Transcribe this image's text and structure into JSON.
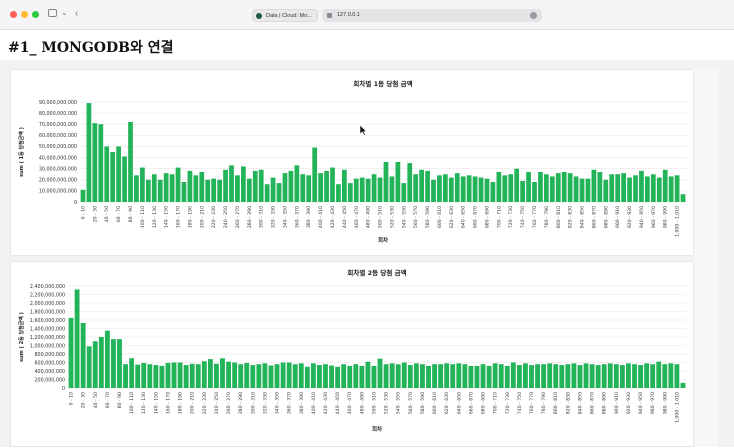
{
  "browser": {
    "tab_title": "Data | Cloud: Mo...",
    "url": "127.0.0.1",
    "colors": {
      "close": "#fe5f57",
      "minimize": "#febc2e",
      "maximize": "#28c840"
    }
  },
  "page": {
    "heading": "#1_ MONGODB와 연결"
  },
  "chart_data": [
    {
      "type": "bar",
      "title": "회차별 1등 당첨 금액",
      "xlabel": "회차",
      "ylabel": "sum ( 1등 당첨금액 )",
      "color": "#23b45a",
      "ylim": [
        0,
        90000000000
      ],
      "yticks": [
        0,
        10000000000,
        20000000000,
        30000000000,
        40000000000,
        50000000000,
        60000000000,
        70000000000,
        80000000000,
        90000000000
      ],
      "ytick_labels": [
        "0",
        "10,000,000,000",
        "20,000,000,000",
        "30,000,000,000",
        "40,000,000,000",
        "50,000,000,000",
        "60,000,000,000",
        "70,000,000,000",
        "80,000,000,000",
        "90,000,000,000"
      ],
      "x_tick_labels": [
        "0 - 10",
        "20 - 30",
        "40 - 50",
        "60 - 70",
        "80 - 90",
        "100 - 110",
        "120 - 130",
        "140 - 150",
        "160 - 170",
        "180 - 190",
        "200 - 210",
        "220 - 230",
        "240 - 250",
        "260 - 270",
        "280 - 290",
        "300 - 310",
        "320 - 330",
        "340 - 350",
        "360 - 370",
        "380 - 390",
        "400 - 410",
        "420 - 430",
        "440 - 450",
        "460 - 470",
        "480 - 490",
        "500 - 510",
        "520 - 530",
        "540 - 550",
        "560 - 570",
        "580 - 590",
        "600 - 610",
        "620 - 630",
        "640 - 650",
        "660 - 670",
        "680 - 690",
        "700 - 710",
        "720 - 730",
        "740 - 750",
        "760 - 770",
        "780 - 790",
        "800 - 810",
        "820 - 830",
        "840 - 850",
        "860 - 870",
        "880 - 890",
        "900 - 910",
        "920 - 930",
        "940 - 950",
        "960 - 970",
        "980 - 990",
        "1,000 - 1,010"
      ],
      "values": [
        11,
        89,
        71,
        70,
        50,
        45,
        50,
        41,
        72,
        24,
        31,
        20,
        25,
        20,
        26,
        25,
        31,
        18,
        28,
        24,
        27,
        20,
        21,
        20,
        29,
        33,
        24,
        32,
        21,
        28,
        29,
        16,
        22,
        17,
        26,
        28,
        33,
        25,
        24,
        49,
        26,
        28,
        31,
        16,
        29,
        17,
        21,
        22,
        21,
        25,
        22,
        36,
        23,
        36,
        17,
        35,
        25,
        29,
        28,
        20,
        24,
        25,
        22,
        26,
        23,
        24,
        23,
        22,
        21,
        18,
        27,
        24,
        25,
        30,
        19,
        27,
        18,
        27,
        25,
        23,
        26,
        27,
        26,
        23,
        21,
        21,
        29,
        27,
        20,
        25,
        25,
        26,
        22,
        24,
        28,
        23,
        25,
        22,
        29,
        23,
        24,
        7
      ]
    },
    {
      "type": "bar",
      "title": "회차별 2등 당첨 금액",
      "xlabel": "회차",
      "ylabel": "sum ( 2등 당첨금액 )",
      "color": "#23b45a",
      "ylim": [
        0,
        2400000000
      ],
      "yticks": [
        0,
        200000000,
        400000000,
        600000000,
        800000000,
        1000000000,
        1200000000,
        1400000000,
        1600000000,
        1800000000,
        2000000000,
        2200000000,
        2400000000
      ],
      "ytick_labels": [
        "0",
        "200,000,000",
        "400,000,000",
        "600,000,000",
        "800,000,000",
        "1,000,000,000",
        "1,200,000,000",
        "1,400,000,000",
        "1,600,000,000",
        "1,800,000,000",
        "2,000,000,000",
        "2,200,000,000",
        "2,400,000,000"
      ],
      "x_tick_labels": [
        "0 - 10",
        "20 - 30",
        "40 - 50",
        "60 - 70",
        "80 - 90",
        "100 - 110",
        "120 - 130",
        "140 - 150",
        "160 - 170",
        "180 - 190",
        "200 - 210",
        "220 - 230",
        "240 - 250",
        "260 - 270",
        "280 - 290",
        "300 - 310",
        "320 - 330",
        "340 - 350",
        "360 - 370",
        "380 - 390",
        "400 - 410",
        "420 - 430",
        "440 - 450",
        "460 - 470",
        "480 - 490",
        "500 - 510",
        "520 - 530",
        "540 - 550",
        "560 - 570",
        "580 - 590",
        "600 - 610",
        "620 - 630",
        "640 - 650",
        "660 - 670",
        "680 - 690",
        "700 - 710",
        "720 - 730",
        "740 - 750",
        "760 - 770",
        "780 - 790",
        "800 - 810",
        "820 - 830",
        "840 - 850",
        "860 - 870",
        "880 - 890",
        "900 - 910",
        "920 - 930",
        "940 - 950",
        "960 - 970",
        "980 - 990",
        "1,000 - 1,010"
      ],
      "values": [
        1650,
        2320,
        1530,
        980,
        1100,
        1200,
        1350,
        1150,
        1150,
        560,
        700,
        550,
        590,
        560,
        540,
        520,
        590,
        600,
        600,
        540,
        570,
        560,
        630,
        680,
        570,
        700,
        620,
        600,
        560,
        590,
        540,
        560,
        580,
        530,
        560,
        600,
        600,
        560,
        580,
        500,
        580,
        540,
        560,
        530,
        500,
        560,
        520,
        560,
        520,
        620,
        520,
        690,
        560,
        580,
        560,
        600,
        540,
        580,
        560,
        520,
        560,
        560,
        580,
        560,
        580,
        560,
        520,
        520,
        560,
        520,
        580,
        560,
        520,
        600,
        540,
        580,
        540,
        560,
        560,
        580,
        560,
        540,
        560,
        580,
        540,
        580,
        560,
        540,
        560,
        580,
        560,
        540,
        580,
        560,
        540,
        580,
        560,
        620,
        560,
        580,
        560,
        120
      ]
    }
  ]
}
